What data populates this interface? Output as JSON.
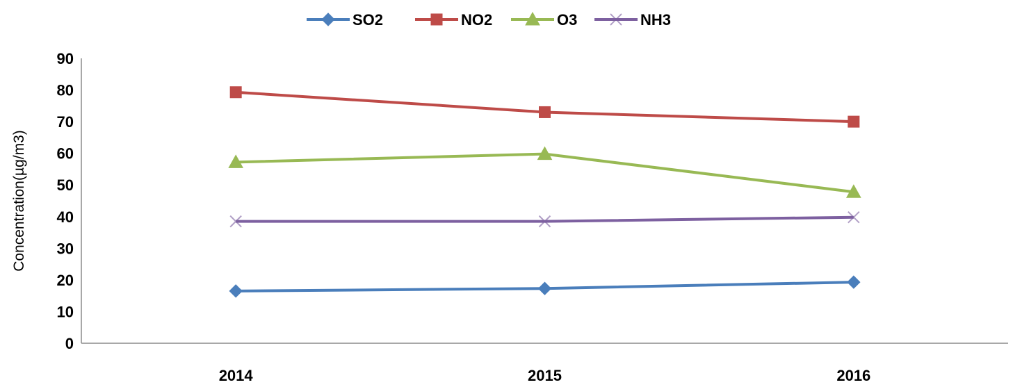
{
  "chart_data": {
    "type": "line",
    "title": "",
    "xlabel": "",
    "ylabel": "Concentration(µg/m3)",
    "categories": [
      "2014",
      "2015",
      "2016"
    ],
    "ylim": [
      0,
      90
    ],
    "yticks": [
      "0",
      "10",
      "20",
      "30",
      "40",
      "50",
      "60",
      "70",
      "80",
      "90"
    ],
    "grid": false,
    "legend_position": "top",
    "series": [
      {
        "name": "SO2",
        "values": [
          16.5,
          17.3,
          19.3
        ],
        "color": "#4a7ebb",
        "marker": "diamond"
      },
      {
        "name": "NO2",
        "values": [
          79.3,
          73.0,
          70.0
        ],
        "color": "#be4b48",
        "marker": "square"
      },
      {
        "name": "O3",
        "values": [
          57.2,
          59.8,
          47.8
        ],
        "color": "#98b954",
        "marker": "triangle"
      },
      {
        "name": "NH3",
        "values": [
          38.5,
          38.5,
          39.8
        ],
        "color": "#7d60a0",
        "marker": "x"
      }
    ]
  }
}
